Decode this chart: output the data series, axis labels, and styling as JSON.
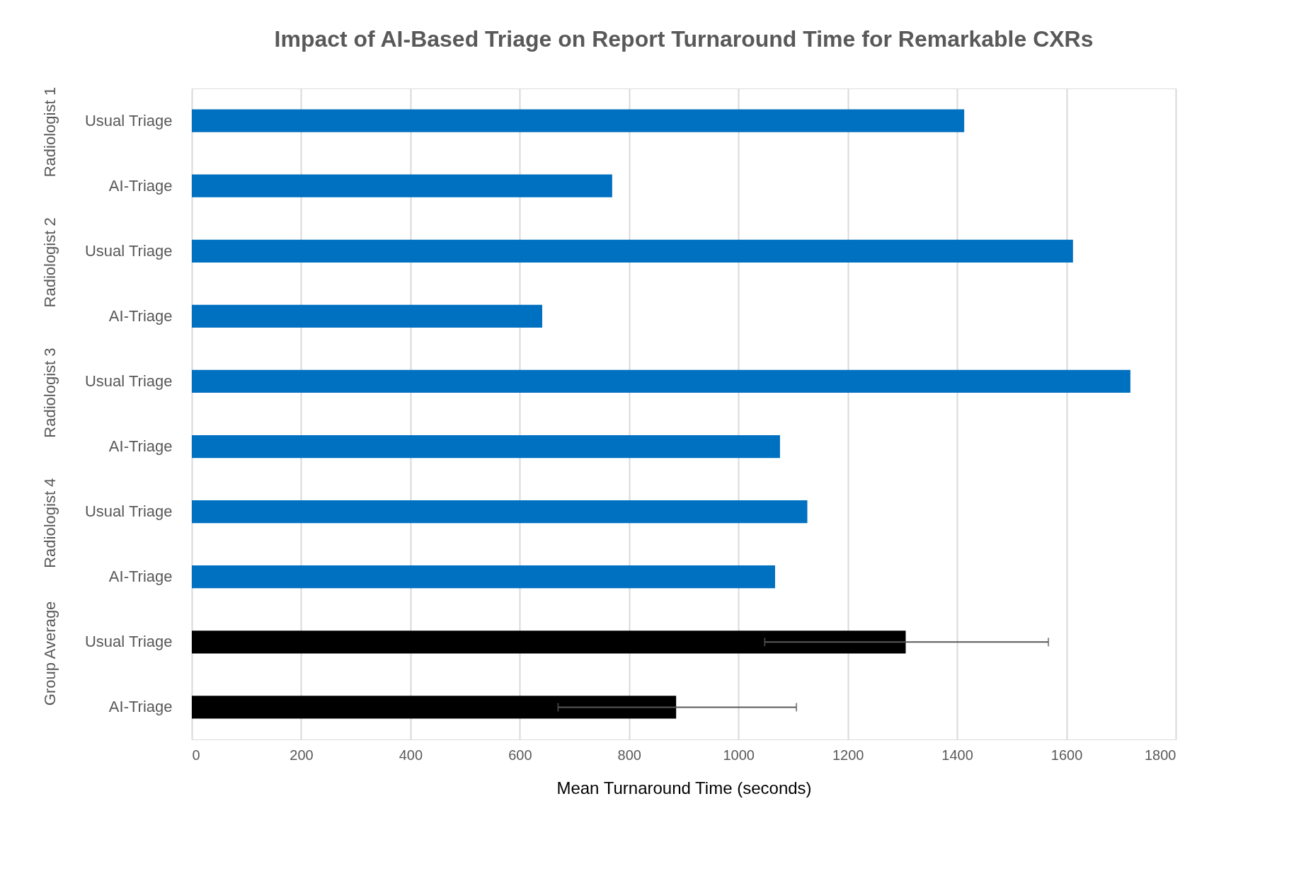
{
  "chart_data": {
    "type": "bar",
    "orientation": "horizontal",
    "title": "Impact of AI-Based Triage on Report Turnaround Time for Remarkable CXRs",
    "xlabel": "Mean Turnaround Time  (seconds)",
    "categories": [
      "Usual Triage",
      "AI-Triage",
      "Usual Triage",
      "AI-Triage",
      "Usual Triage",
      "AI-Triage",
      "Usual Triage",
      "AI-Triage",
      "Usual Triage",
      "AI-Triage"
    ],
    "values": [
      1413,
      769,
      1612,
      641,
      1717,
      1076,
      1126,
      1067,
      1306,
      886
    ],
    "colors": [
      "#0070c0",
      "#0070c0",
      "#0070c0",
      "#0070c0",
      "#0070c0",
      "#0070c0",
      "#0070c0",
      "#0070c0",
      "#000000",
      "#000000"
    ],
    "errors": [
      null,
      null,
      null,
      null,
      null,
      null,
      null,
      null,
      [
        1048,
        1567
      ],
      [
        670,
        1106
      ]
    ],
    "xlim": [
      0,
      1800
    ],
    "xticks": [
      0,
      200,
      400,
      600,
      800,
      1000,
      1200,
      1400,
      1600,
      1800
    ],
    "grid": "x",
    "annotations": [
      "Radiologist 1",
      "Radiologist 2",
      "Radiologist 3",
      "Radiologist 4",
      "Group Average"
    ]
  }
}
